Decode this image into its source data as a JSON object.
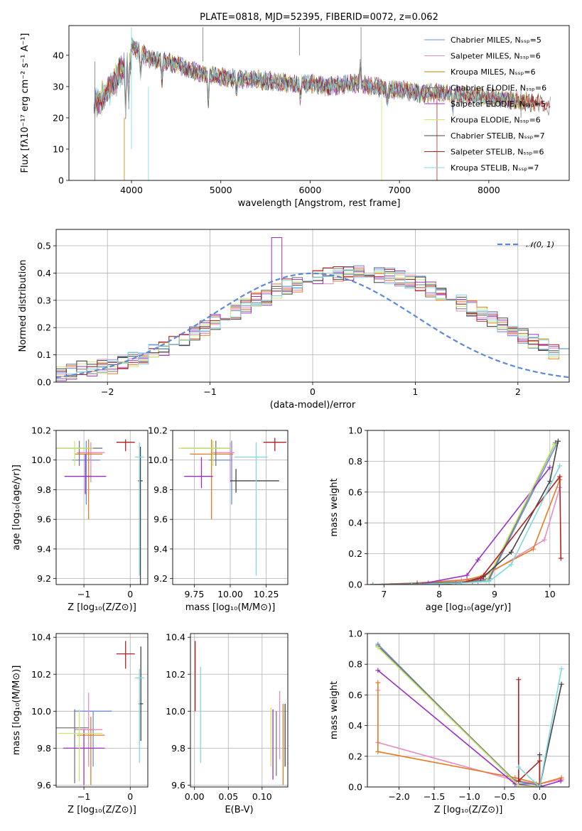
{
  "colors": {
    "chabrier_miles": "#6a8fd8",
    "salpeter_miles": "#e88bc2",
    "kroupa_miles": "#b8860b",
    "chabrier_elodie": "#777777",
    "salpeter_elodie": "#9b30c0",
    "kroupa_elodie": "#c8e870",
    "chabrier_stelib": "#444444",
    "salpeter_stelib": "#b22222",
    "kroupa_stelib": "#80d8e0",
    "orange": "#e87a20",
    "grid": "#b0b0b0"
  },
  "chart_data": [
    {
      "type": "line",
      "title": "PLATE=0818, MJD=52395, FIBERID=0072, z=0.062",
      "xlabel": "wavelength [Angstrom, rest frame]",
      "ylabel": "Flux [fλ10⁻¹⁷ erg cm⁻² s⁻¹ A⁻¹]",
      "xlim": [
        3300,
        8900
      ],
      "ylim": [
        0,
        49.5
      ],
      "xticks": [
        4000,
        5000,
        6000,
        7000,
        8000
      ],
      "yticks": [
        0,
        10,
        20,
        30,
        40
      ],
      "grid": false,
      "legend_position": "top-right",
      "series": [
        {
          "name": "Chabrier MILES, Nₛₛₚ=5",
          "color_key": "chabrier_miles"
        },
        {
          "name": "Salpeter MILES, Nₛₛₚ=6",
          "color_key": "salpeter_miles"
        },
        {
          "name": "Kroupa MILES, Nₛₛₚ=6",
          "color_key": "kroupa_miles"
        },
        {
          "name": "Chabrier ELODIE, Nₛₛₚ=6",
          "color_key": "chabrier_elodie"
        },
        {
          "name": "Salpeter ELODIE, Nₛₛₚ=5",
          "color_key": "salpeter_elodie"
        },
        {
          "name": "Kroupa ELODIE, Nₛₛₚ=6",
          "color_key": "kroupa_elodie"
        },
        {
          "name": "Chabrier STELIB, Nₛₛₚ=7",
          "color_key": "chabrier_stelib"
        },
        {
          "name": "Salpeter STELIB, Nₛₛₚ=6",
          "color_key": "salpeter_stelib"
        },
        {
          "name": "Kroupa STELIB, Nₛₛₚ=7",
          "color_key": "kroupa_stelib"
        }
      ],
      "continuum": {
        "x": [
          3580,
          3700,
          3800,
          3900,
          4000,
          4100,
          4200,
          4400,
          4600,
          4800,
          5000,
          5200,
          5500,
          5800,
          6000,
          6200,
          6500,
          6700,
          7000,
          7200,
          7500,
          7800,
          8000,
          8300,
          8600,
          8900
        ],
        "y": [
          27,
          30,
          34,
          39,
          43,
          41,
          39,
          38,
          36,
          34,
          33,
          32.5,
          32,
          31,
          31,
          30,
          31,
          30,
          29,
          28,
          28,
          27,
          26.5,
          25.5,
          24.5,
          22
        ]
      }
    },
    {
      "type": "bar",
      "xlabel": "(data-model)/error",
      "ylabel": "Normed distribution",
      "xlim": [
        -2.5,
        2.5
      ],
      "ylim": [
        0,
        0.56
      ],
      "xticks": [
        -2,
        -1,
        0,
        1,
        2
      ],
      "yticks": [
        0.0,
        0.1,
        0.2,
        0.3,
        0.4,
        0.5
      ],
      "grid": true,
      "legend_position": "top-right",
      "legend": "𝒩(0, 1)",
      "bin_width": 0.1,
      "base": [
        0.03,
        0.04,
        0.05,
        0.05,
        0.06,
        0.06,
        0.07,
        0.08,
        0.09,
        0.11,
        0.12,
        0.14,
        0.16,
        0.18,
        0.2,
        0.22,
        0.24,
        0.26,
        0.28,
        0.3,
        0.31,
        0.33,
        0.35,
        0.36,
        0.37,
        0.38,
        0.39,
        0.395,
        0.4,
        0.4,
        0.4,
        0.395,
        0.39,
        0.38,
        0.37,
        0.36,
        0.34,
        0.33,
        0.31,
        0.29,
        0.27,
        0.25,
        0.23,
        0.21,
        0.19,
        0.17,
        0.15,
        0.13,
        0.11,
        0.1
      ]
    },
    {
      "type": "scatter",
      "xlabel": "Z [log₁₀(Z/Z⊙)]",
      "ylabel": "age  [log₁₀(age/yr)]",
      "xlim": [
        -1.6,
        0.38
      ],
      "ylim": [
        9.16,
        10.2
      ],
      "xticks": [
        -1,
        0
      ],
      "yticks": [
        9.2,
        9.4,
        9.6,
        9.8,
        10.0,
        10.2
      ],
      "grid": true,
      "points": [
        {
          "x": -0.95,
          "y": 10.0,
          "ex": [
            -0.3,
            0.3
          ],
          "ey": [
            -0.3,
            0.13
          ],
          "c": "chabrier_miles"
        },
        {
          "x": -0.85,
          "y": 10.05,
          "ex": [
            -0.3,
            0.3
          ],
          "ey": [
            -0.2,
            0.07
          ],
          "c": "salpeter_miles"
        },
        {
          "x": -0.9,
          "y": 10.04,
          "ex": [
            -0.3,
            0.3
          ],
          "ey": [
            -0.44,
            0.1
          ],
          "c": "orange"
        },
        {
          "x": -1.1,
          "y": 10.08,
          "ex": [
            -0.5,
            0.5
          ],
          "ey": [
            -0.12,
            0.05
          ],
          "c": "chabrier_elodie"
        },
        {
          "x": -0.97,
          "y": 9.89,
          "ex": [
            -0.45,
            0.45
          ],
          "ey": [
            -0.12,
            0.15
          ],
          "c": "salpeter_elodie"
        },
        {
          "x": -1.2,
          "y": 10.08,
          "ex": [
            -0.4,
            0.4
          ],
          "ey": [
            -0.12,
            0.05
          ],
          "c": "kroupa_elodie"
        },
        {
          "x": 0.22,
          "y": 9.86,
          "ex": [
            -0.05,
            0.05
          ],
          "ey": [
            -0.7,
            0.23
          ],
          "c": "chabrier_stelib"
        },
        {
          "x": -0.1,
          "y": 10.12,
          "ex": [
            -0.2,
            0.2
          ],
          "ey": [
            -0.06,
            0.02
          ],
          "c": "salpeter_stelib"
        },
        {
          "x": 0.2,
          "y": 10.02,
          "ex": [
            -0.1,
            0.1
          ],
          "ey": [
            -0.8,
            0.1
          ],
          "c": "kroupa_stelib"
        }
      ]
    },
    {
      "type": "scatter",
      "xlabel": "mass [log₁₀(M/M⊙)]",
      "ylabel": "",
      "xlim": [
        9.6,
        10.4
      ],
      "ylim": [
        9.16,
        10.2
      ],
      "xticks": [
        9.75,
        10.0,
        10.25
      ],
      "xtick_labels": [
        "9.75",
        "10.00",
        "10.25"
      ],
      "yticks": [
        9.2,
        9.4,
        9.6,
        9.8,
        10.0,
        10.2
      ],
      "grid": true,
      "points": [
        {
          "x": 10.01,
          "y": 10.0,
          "ex": [
            -0.16,
            0.0
          ],
          "ey": [
            -0.3,
            0.13
          ],
          "c": "chabrier_miles"
        },
        {
          "x": 10.0,
          "y": 10.05,
          "ex": [
            -0.13,
            0.03
          ],
          "ey": [
            -0.2,
            0.07
          ],
          "c": "salpeter_miles"
        },
        {
          "x": 9.87,
          "y": 10.04,
          "ex": [
            -0.15,
            0.15
          ],
          "ey": [
            -0.44,
            0.1
          ],
          "c": "orange"
        },
        {
          "x": 9.9,
          "y": 10.08,
          "ex": [
            -0.24,
            0.1
          ],
          "ey": [
            -0.12,
            0.05
          ],
          "c": "chabrier_elodie"
        },
        {
          "x": 9.8,
          "y": 9.89,
          "ex": [
            -0.12,
            0.08
          ],
          "ey": [
            -0.08,
            0.13
          ],
          "c": "salpeter_elodie"
        },
        {
          "x": 9.88,
          "y": 10.08,
          "ex": [
            -0.24,
            0.12
          ],
          "ey": [
            -0.12,
            0.05
          ],
          "c": "kroupa_elodie"
        },
        {
          "x": 10.04,
          "y": 9.86,
          "ex": [
            -0.04,
            0.3
          ],
          "ey": [
            -0.08,
            0.08
          ],
          "c": "chabrier_stelib"
        },
        {
          "x": 10.31,
          "y": 10.12,
          "ex": [
            -0.08,
            0.08
          ],
          "ey": [
            -0.06,
            0.03
          ],
          "c": "salpeter_stelib"
        },
        {
          "x": 10.18,
          "y": 10.02,
          "ex": [
            -0.15,
            0.08
          ],
          "ey": [
            -0.8,
            0.1
          ],
          "c": "kroupa_stelib"
        }
      ]
    },
    {
      "type": "line",
      "xlabel": "age  [log₁₀(age/yr)]",
      "ylabel": "mass weight",
      "xlim": [
        6.7,
        10.35
      ],
      "ylim": [
        0,
        1.0
      ],
      "xticks": [
        7,
        8,
        9,
        10
      ],
      "yticks": [
        0.0,
        0.2,
        0.4,
        0.6,
        0.8,
        1.0
      ],
      "grid": true,
      "series": [
        {
          "c": "chabrier_miles",
          "x": [
            6.8,
            7.6,
            8.3,
            8.7,
            8.9,
            10.15
          ],
          "y": [
            0.0,
            0.0,
            0.01,
            0.02,
            0.03,
            0.93
          ]
        },
        {
          "c": "salpeter_miles",
          "x": [
            6.8,
            7.6,
            8.4,
            8.8,
            9.9,
            10.18
          ],
          "y": [
            0.0,
            0.01,
            0.03,
            0.05,
            0.29,
            0.63
          ]
        },
        {
          "c": "orange",
          "x": [
            6.8,
            7.6,
            8.5,
            8.8,
            9.7,
            10.18
          ],
          "y": [
            0.0,
            0.01,
            0.03,
            0.06,
            0.23,
            0.68
          ]
        },
        {
          "c": "chabrier_elodie",
          "x": [
            6.8,
            7.8,
            8.6,
            8.9,
            10.1
          ],
          "y": [
            0.0,
            0.01,
            0.02,
            0.04,
            0.92
          ]
        },
        {
          "c": "salpeter_elodie",
          "x": [
            6.8,
            7.6,
            8.5,
            8.7,
            10.0
          ],
          "y": [
            0.0,
            0.0,
            0.06,
            0.16,
            0.76
          ]
        },
        {
          "c": "kroupa_elodie",
          "x": [
            6.8,
            7.5,
            8.4,
            8.85,
            10.08
          ],
          "y": [
            0.0,
            0.0,
            0.01,
            0.02,
            0.91
          ]
        },
        {
          "c": "chabrier_stelib",
          "x": [
            6.8,
            7.6,
            8.4,
            8.8,
            9.3,
            10.0,
            10.15
          ],
          "y": [
            0.0,
            0.0,
            0.01,
            0.05,
            0.21,
            0.67,
            0.93
          ]
        },
        {
          "c": "salpeter_stelib",
          "x": [
            6.8,
            7.7,
            8.4,
            8.75,
            10.18,
            10.2
          ],
          "y": [
            0.0,
            0.0,
            0.01,
            0.04,
            0.7,
            0.17
          ]
        },
        {
          "c": "kroupa_stelib",
          "x": [
            6.8,
            7.5,
            8.4,
            8.9,
            9.3,
            10.18
          ],
          "y": [
            0.0,
            0.0,
            0.01,
            0.02,
            0.13,
            0.77
          ]
        }
      ]
    },
    {
      "type": "scatter",
      "xlabel": "Z [log₁₀(Z/Z⊙)]",
      "ylabel": "mass [log₁₀(M/M⊙)]",
      "xlim": [
        -1.6,
        0.38
      ],
      "ylim": [
        9.59,
        10.42
      ],
      "xticks": [
        -1,
        0
      ],
      "yticks": [
        9.6,
        9.8,
        10.0,
        10.2,
        10.4
      ],
      "grid": true,
      "points": [
        {
          "x": -0.8,
          "y": 10.0,
          "ex": [
            -0.4,
            0.4
          ],
          "ey": [
            -0.3,
            0.0
          ],
          "c": "chabrier_miles"
        },
        {
          "x": -0.9,
          "y": 9.9,
          "ex": [
            -0.3,
            0.3
          ],
          "ey": [
            -0.2,
            0.2
          ],
          "c": "salpeter_miles"
        },
        {
          "x": -0.85,
          "y": 9.87,
          "ex": [
            -0.3,
            0.3
          ],
          "ey": [
            -0.27,
            0.1
          ],
          "c": "orange"
        },
        {
          "x": -1.2,
          "y": 9.91,
          "ex": [
            -0.5,
            0.3
          ],
          "ey": [
            -0.3,
            0.1
          ],
          "c": "chabrier_elodie"
        },
        {
          "x": -1.0,
          "y": 9.8,
          "ex": [
            -0.45,
            0.45
          ],
          "ey": [
            -0.2,
            0.1
          ],
          "c": "salpeter_elodie"
        },
        {
          "x": -1.1,
          "y": 9.88,
          "ex": [
            -0.45,
            0.5
          ],
          "ey": [
            -0.26,
            0.13
          ],
          "c": "kroupa_elodie"
        },
        {
          "x": 0.23,
          "y": 10.04,
          "ex": [
            -0.05,
            0.05
          ],
          "ey": [
            -0.2,
            0.31
          ],
          "c": "chabrier_stelib"
        },
        {
          "x": -0.1,
          "y": 10.31,
          "ex": [
            -0.2,
            0.2
          ],
          "ey": [
            -0.08,
            0.07
          ],
          "c": "salpeter_stelib"
        },
        {
          "x": 0.2,
          "y": 10.18,
          "ex": [
            -0.1,
            0.1
          ],
          "ey": [
            -0.46,
            0.05
          ],
          "c": "kroupa_stelib"
        }
      ]
    },
    {
      "type": "scatter",
      "xlabel": "E(B-V)",
      "ylabel": "",
      "xlim": [
        -0.006,
        0.138
      ],
      "ylim": [
        9.59,
        10.42
      ],
      "xticks": [
        0.0,
        0.05,
        0.1
      ],
      "xtick_labels": [
        "0.00",
        "0.05",
        "0.10"
      ],
      "yticks": [
        9.6,
        9.8,
        10.0,
        10.2,
        10.4
      ],
      "grid": true,
      "points": [
        {
          "x": 0.001,
          "y": 10.31,
          "ex": [
            0,
            0
          ],
          "ey": [
            -0.31,
            0.07
          ],
          "c": "salpeter_stelib"
        },
        {
          "x": 0.009,
          "y": 10.0,
          "ex": [
            0,
            0
          ],
          "ey": [
            -0.28,
            0.24
          ],
          "c": "kroupa_stelib"
        },
        {
          "x": 0.113,
          "y": 9.9,
          "ex": [
            0,
            0
          ],
          "ey": [
            -0.2,
            0.12
          ],
          "c": "kroupa_elodie"
        },
        {
          "x": 0.116,
          "y": 9.95,
          "ex": [
            0,
            0
          ],
          "ey": [
            -0.32,
            0.06
          ],
          "c": "salpeter_elodie"
        },
        {
          "x": 0.121,
          "y": 9.9,
          "ex": [
            0,
            0
          ],
          "ey": [
            -0.25,
            0.1
          ],
          "c": "chabrier_elodie"
        },
        {
          "x": 0.126,
          "y": 10.0,
          "ex": [
            0,
            0
          ],
          "ey": [
            -0.26,
            0.11
          ],
          "c": "salpeter_miles"
        },
        {
          "x": 0.131,
          "y": 9.88,
          "ex": [
            0,
            0
          ],
          "ey": [
            -0.28,
            0.16
          ],
          "c": "orange"
        },
        {
          "x": 0.134,
          "y": 9.95,
          "ex": [
            0,
            0
          ],
          "ey": [
            -0.25,
            0.09
          ],
          "c": "chabrier_stelib"
        }
      ]
    },
    {
      "type": "line",
      "xlabel": "Z [log₁₀(Z/Z⊙)]",
      "ylabel": "mass weight",
      "xlim": [
        -2.45,
        0.42
      ],
      "ylim": [
        0,
        1.0
      ],
      "xticks": [
        -2.0,
        -1.5,
        -1.0,
        -0.5,
        0.0
      ],
      "xtick_labels": [
        "−2.0",
        "−1.5",
        "−1.0",
        "−0.5",
        "0.0"
      ],
      "yticks": [
        0.0,
        0.2,
        0.4,
        0.6,
        0.8,
        1.0
      ],
      "grid": true,
      "series": [
        {
          "c": "chabrier_miles",
          "x": [
            -2.3,
            -0.33,
            -0.05,
            0.0
          ],
          "y": [
            0.93,
            0.02,
            0.02,
            0.01
          ]
        },
        {
          "c": "salpeter_miles",
          "x": [
            -2.3,
            -2.3,
            -0.33,
            0.0,
            0.31
          ],
          "y": [
            0.63,
            0.29,
            0.04,
            0.02,
            0.05
          ]
        },
        {
          "c": "orange",
          "x": [
            -2.3,
            -2.3,
            -0.35,
            0.0,
            0.31
          ],
          "y": [
            0.68,
            0.23,
            0.06,
            0.02,
            0.06
          ]
        },
        {
          "c": "chabrier_elodie",
          "x": [
            -2.3,
            -0.35,
            0.0
          ],
          "y": [
            0.92,
            0.04,
            0.01
          ]
        },
        {
          "c": "salpeter_elodie",
          "x": [
            -2.3,
            -0.35,
            0.0,
            0.3
          ],
          "y": [
            0.76,
            0.02,
            0.0,
            0.04
          ]
        },
        {
          "c": "kroupa_elodie",
          "x": [
            -2.3,
            -0.3,
            0.0
          ],
          "y": [
            0.91,
            0.01,
            0.0
          ]
        },
        {
          "c": "chabrier_stelib",
          "x": [
            0.0,
            0.0,
            0.31
          ],
          "y": [
            0.21,
            0.0,
            0.67
          ]
        },
        {
          "c": "salpeter_stelib",
          "x": [
            -0.3,
            -0.3,
            0.0,
            0.0
          ],
          "y": [
            0.7,
            0.04,
            0.17,
            0.0
          ]
        },
        {
          "c": "kroupa_stelib",
          "x": [
            -0.3,
            0.0,
            0.31
          ],
          "y": [
            0.13,
            0.0,
            0.77
          ]
        }
      ]
    }
  ]
}
